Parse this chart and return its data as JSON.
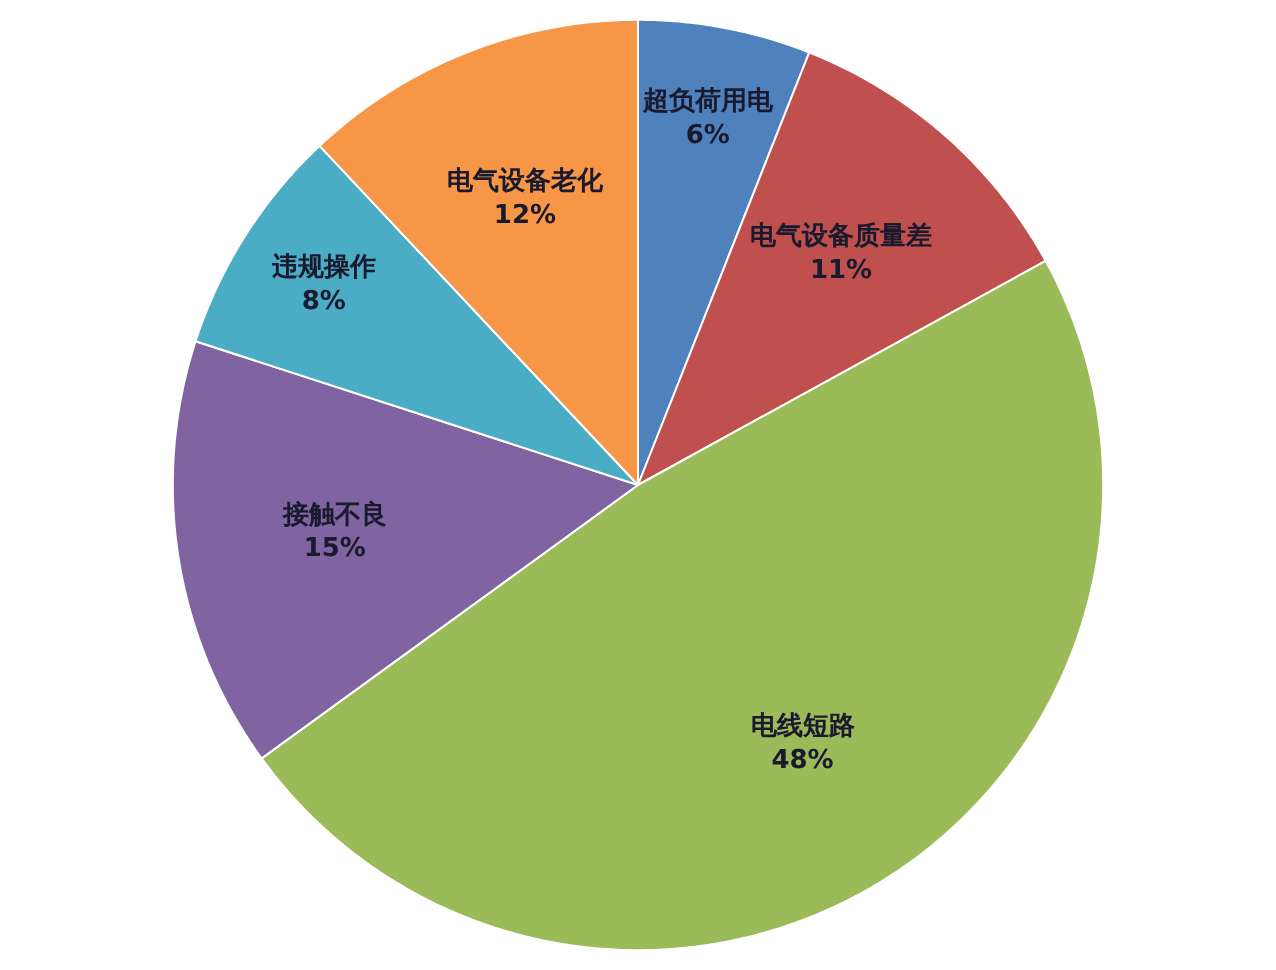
{
  "chart_data": {
    "type": "pie",
    "categories": [
      "超负荷用电",
      "电气设备质量差",
      "电线短路",
      "接触不良",
      "违规操作",
      "电气设备老化"
    ],
    "values": [
      6,
      11,
      48,
      15,
      8,
      12
    ],
    "value_labels": [
      "6%",
      "11%",
      "48%",
      "15%",
      "8%",
      "12%"
    ],
    "colors": [
      "#4f81bd",
      "#c0504d",
      "#9bbb59",
      "#8064a2",
      "#4bacc6",
      "#f79646"
    ],
    "legend": false
  }
}
